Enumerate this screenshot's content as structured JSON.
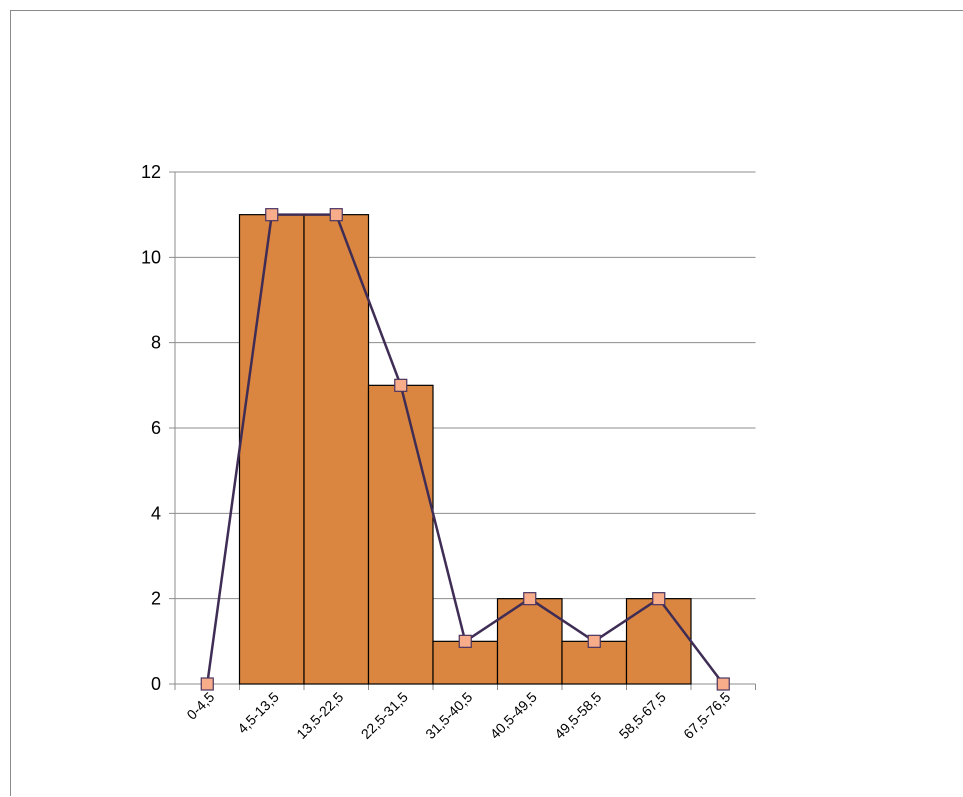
{
  "chart_data": {
    "type": "bar",
    "categories": [
      "0-4,5",
      "4,5-13,5",
      "13,5-22,5",
      "22,5-31,5",
      "31,5-40,5",
      "40,5-49,5",
      "49,5-58,5",
      "58,5-67,5",
      "67,5-76,5"
    ],
    "series": [
      {
        "type": "bar",
        "values": [
          0,
          11,
          11,
          7,
          1,
          2,
          1,
          2,
          0
        ]
      },
      {
        "type": "line",
        "values": [
          0,
          11,
          11,
          7,
          1,
          2,
          1,
          2,
          0
        ]
      }
    ],
    "ylim": [
      0,
      12
    ],
    "yticks": [
      0,
      2,
      4,
      6,
      8,
      10,
      12
    ],
    "grid": true,
    "legend": "none",
    "colors": {
      "bar_fill": "#db8640",
      "bar_stroke": "#000000",
      "line": "#3f2d55",
      "marker_fill": "#f7ad8a",
      "marker_stroke": "#4a3560",
      "grid": "#8c8c8c"
    }
  }
}
